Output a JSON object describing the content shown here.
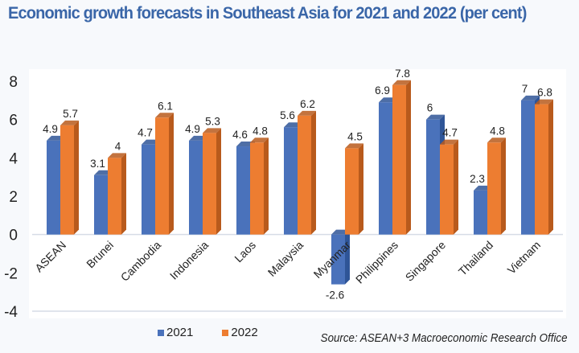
{
  "title": "Economic growth forecasts in Southeast Asia for 2021 and 2022 (per cent)",
  "source": "Source: ASEAN+3 Macroeconomic Research Office",
  "colors": {
    "series_2021": "#4a72bb",
    "series_2021_dark": "#2f5597",
    "series_2022": "#ed7d31",
    "series_2022_dark": "#b85a1c",
    "title": "#3a66a8"
  },
  "chart_data": {
    "type": "bar",
    "title": "Economic growth forecasts in Southeast Asia for 2021 and 2022 (per cent)",
    "xlabel": "",
    "ylabel": "",
    "ylim": [
      -4,
      8
    ],
    "yticks": [
      8,
      6,
      4,
      2,
      0,
      -2,
      -4
    ],
    "grid": false,
    "legend": "bottom",
    "categories": [
      "ASEAN",
      "Brunei",
      "Cambodia",
      "Indonesia",
      "Laos",
      "Malaysia",
      "Myanmar",
      "Philippines",
      "Singapore",
      "Thailand",
      "Vietnam"
    ],
    "series": [
      {
        "name": "2021",
        "values": [
          4.9,
          3.1,
          4.7,
          4.9,
          4.6,
          5.6,
          -2.6,
          6.9,
          6,
          2.3,
          7
        ],
        "labels": [
          "4.9",
          "3.1",
          "4.7",
          "4.9",
          "4.6",
          "5.6",
          "-2.6",
          "6.9",
          "6",
          "2.3",
          "7"
        ]
      },
      {
        "name": "2022",
        "values": [
          5.7,
          4,
          6.1,
          5.3,
          4.8,
          6.2,
          4.5,
          7.8,
          4.7,
          4.8,
          6.8
        ],
        "labels": [
          "5.7",
          "4",
          "6.1",
          "5.3",
          "4.8",
          "6.2",
          "4.5",
          "7.8",
          "4.7",
          "4.8",
          "6.8"
        ]
      }
    ]
  }
}
